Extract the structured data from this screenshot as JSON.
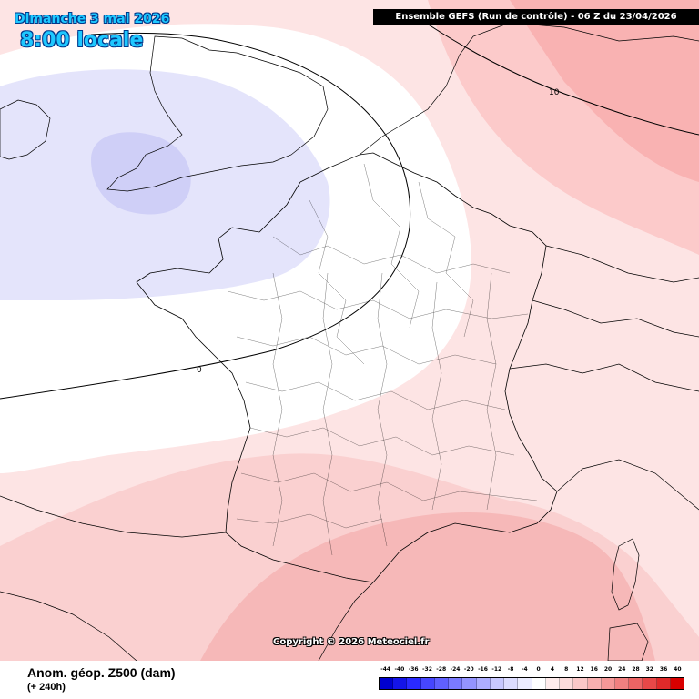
{
  "header": {
    "date": "Dimanche 3 mai 2026",
    "time": "8:00 locale",
    "run": "Ensemble GEFS  (Run de contrôle)  -  06 Z du 23/04/2026"
  },
  "map": {
    "region": "France",
    "contour_labels": [
      "0",
      "10"
    ],
    "copyright": "Copyright © 2026 Meteociel.fr"
  },
  "footer": {
    "parameter": "Anom. géop. Z500 (dam)",
    "lead": "(+ 240h)"
  },
  "legend": {
    "ticks": [
      "-44",
      "-40",
      "-36",
      "-32",
      "-28",
      "-24",
      "-20",
      "-16",
      "-12",
      "-8",
      "-4",
      "0",
      "4",
      "8",
      "12",
      "16",
      "20",
      "24",
      "28",
      "32",
      "36",
      "40"
    ],
    "colors": [
      "#0000d0",
      "#1414e8",
      "#2a2aff",
      "#4646ff",
      "#6060ff",
      "#7a7aff",
      "#9494ff",
      "#aeaeff",
      "#c8c8ff",
      "#dcdcff",
      "#ececff",
      "#ffffff",
      "#ffecec",
      "#fcdcdc",
      "#fac8c8",
      "#f8b0b0",
      "#f49898",
      "#f08080",
      "#ec6464",
      "#e84848",
      "#e02a2a",
      "#d80000"
    ]
  },
  "colors": {
    "positive_anomaly": "#fde4e4",
    "negative_anomaly": "#e4e4fb",
    "title_text": "#1ec8ff"
  }
}
